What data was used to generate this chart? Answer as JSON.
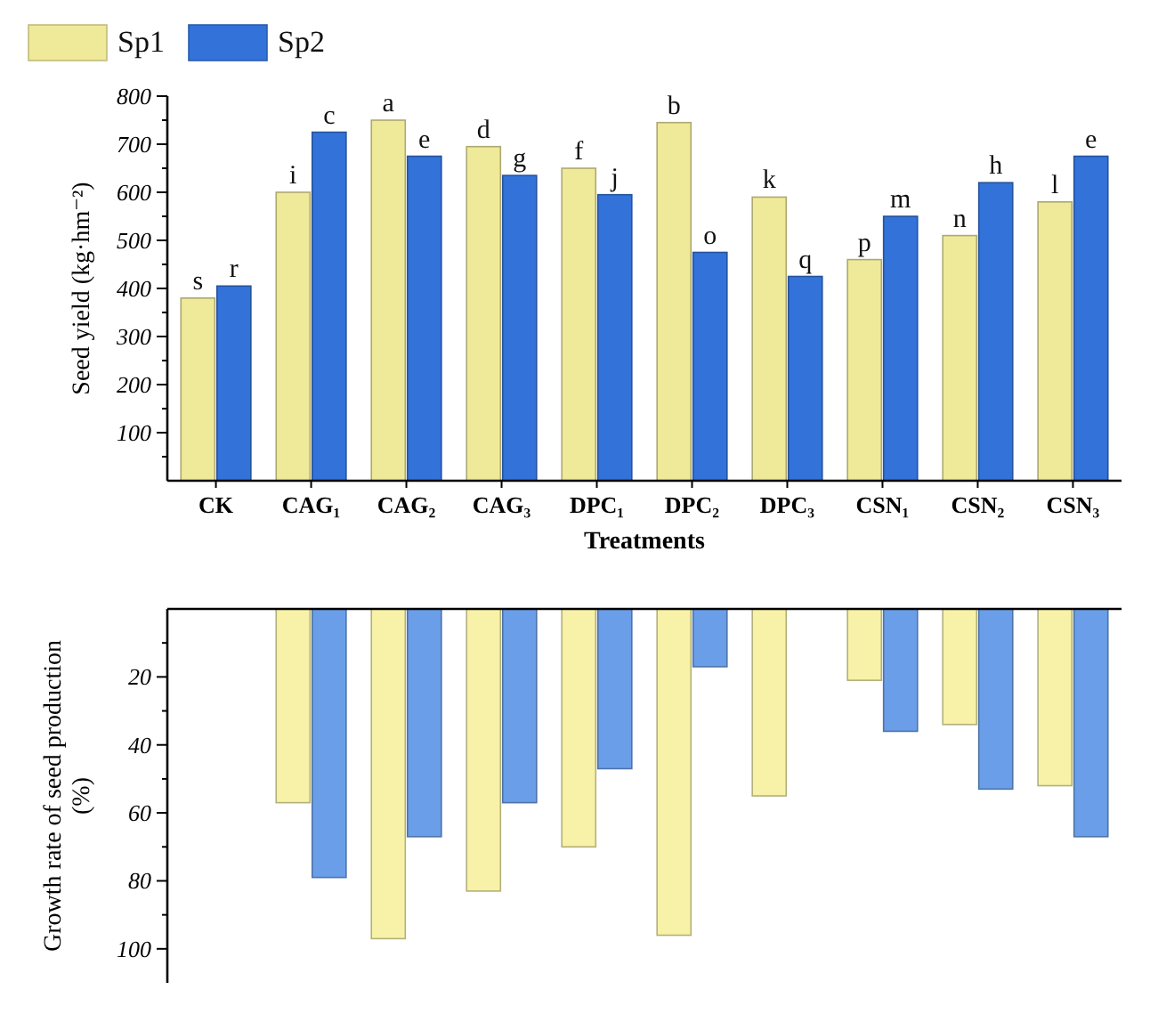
{
  "chart_data": [
    {
      "type": "bar",
      "ylabel": "Seed yield (kg·hm⁻²)",
      "xlabel": "Treatments",
      "categories": [
        "CK",
        "CAG₁",
        "CAG₂",
        "CAG₃",
        "DPC₁",
        "DPC₂",
        "DPC₃",
        "CSN₁",
        "CSN₂",
        "CSN₃"
      ],
      "series": [
        {
          "name": "Sp1",
          "color": "#efe99a",
          "values": [
            380,
            600,
            750,
            695,
            650,
            745,
            590,
            460,
            510,
            580
          ],
          "value_labels": [
            "s",
            "i",
            "a",
            "d",
            "f",
            "b",
            "k",
            "p",
            "n",
            "l"
          ]
        },
        {
          "name": "Sp2",
          "color": "#3372d9",
          "values": [
            405,
            725,
            675,
            635,
            595,
            475,
            425,
            550,
            620,
            675
          ],
          "value_labels": [
            "r",
            "c",
            "e",
            "g",
            "j",
            "o",
            "q",
            "m",
            "h",
            "e"
          ]
        }
      ],
      "ylim": [
        0,
        800
      ],
      "yticks": [
        {
          "value": 50,
          "label": null
        },
        100,
        {
          "value": 150,
          "label": null
        },
        200,
        {
          "value": 250,
          "label": null
        },
        300,
        {
          "value": 350,
          "label": null
        },
        400,
        {
          "value": 450,
          "label": null
        },
        500,
        {
          "value": 550,
          "label": null
        },
        600,
        {
          "value": 650,
          "label": null
        },
        700,
        {
          "value": 750,
          "label": null
        },
        800
      ],
      "legend": "top left"
    },
    {
      "type": "bar",
      "ylabel": "Growth rate of seed production (%)",
      "categories": [
        null,
        null,
        null,
        null,
        null,
        null,
        null,
        null,
        null,
        null
      ],
      "series": [
        {
          "color": "#f7f2a8",
          "values": [
            null,
            57,
            97,
            83,
            70,
            96,
            55,
            21,
            34,
            52
          ]
        },
        {
          "color": "#6a9ee8",
          "values": [
            null,
            79,
            67,
            57,
            47,
            17,
            null,
            36,
            53,
            67
          ]
        }
      ],
      "ylim": [
        110,
        0
      ],
      "yticks": [
        {
          "value": 10,
          "label": null
        },
        20,
        {
          "value": 30,
          "label": null
        },
        40,
        {
          "value": 50,
          "label": null
        },
        60,
        {
          "value": 70,
          "label": null
        },
        80,
        {
          "value": 90,
          "label": null
        },
        100
      ],
      "tick_labels": "y"
    }
  ]
}
